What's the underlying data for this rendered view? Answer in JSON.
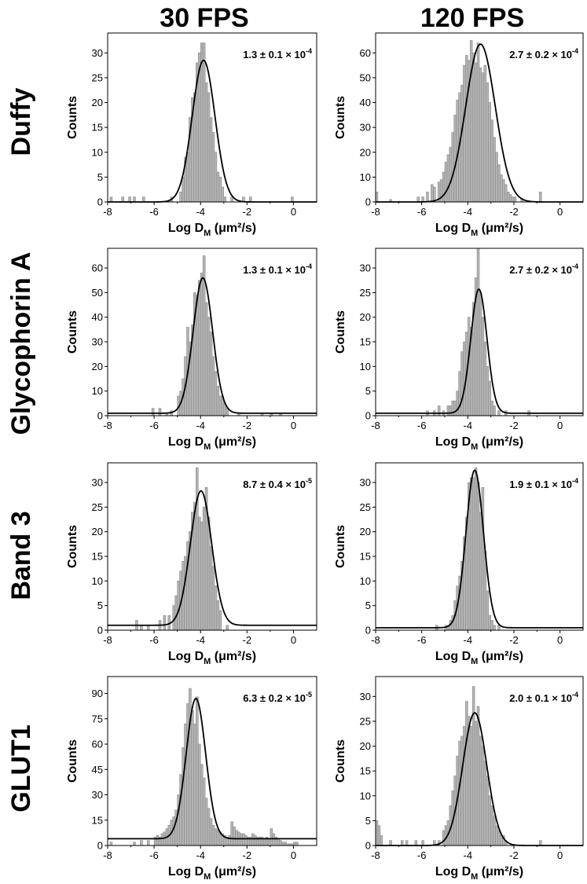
{
  "columns": [
    "30 FPS",
    "120 FPS"
  ],
  "rows": [
    "Duffy",
    "Glycophorin A",
    "Band 3",
    "GLUT1"
  ],
  "xlabel": "Log D",
  "xlabel_sub": "M",
  "xlabel_unit": " (μm²/s)",
  "ylabel": "Counts",
  "bar_color": "#b3b3b3",
  "bar_edge": "#8c8c8c",
  "fit_color": "#000000",
  "chart_data": [
    {
      "type": "bar",
      "row": "Duffy",
      "column": "30 FPS",
      "annotation_base": "1.3 ± 0.1 × 10",
      "annotation_exp": "-4",
      "xlim": [
        -8,
        1
      ],
      "ylim": [
        0,
        34
      ],
      "xticks": [
        -8,
        -6,
        -4,
        -2,
        0
      ],
      "yticks": [
        0,
        5,
        10,
        15,
        20,
        25,
        30
      ],
      "x": [
        -7.85,
        -7.35,
        -7.05,
        -6.85,
        -6.45,
        -5.25,
        -4.85,
        -4.75,
        -4.65,
        -4.55,
        -4.45,
        -4.35,
        -4.25,
        -4.15,
        -4.05,
        -3.95,
        -3.85,
        -3.75,
        -3.65,
        -3.55,
        -3.45,
        -3.35,
        -3.25,
        -3.15,
        -3.05,
        -2.95,
        -2.65,
        -2.15,
        -1.85,
        -0.05
      ],
      "values": [
        1,
        1,
        1,
        1,
        1,
        1,
        2,
        5,
        9,
        10,
        17,
        21,
        22,
        28,
        30,
        32,
        32,
        24,
        22,
        17,
        14,
        10,
        6,
        5,
        3,
        1,
        1,
        1,
        1,
        1
      ],
      "fit": {
        "baseline": 0,
        "amplitude": 28.5,
        "center": -3.87,
        "sigma": 0.49
      }
    },
    {
      "type": "bar",
      "row": "Duffy",
      "column": "120 FPS",
      "annotation_base": "2.7 ± 0.2 × 10",
      "annotation_exp": "-4",
      "xlim": [
        -8,
        1
      ],
      "ylim": [
        0,
        68
      ],
      "xticks": [
        -8,
        -6,
        -4,
        -2,
        0
      ],
      "yticks": [
        0,
        10,
        20,
        30,
        40,
        50,
        60
      ],
      "x": [
        -7.95,
        -7.35,
        -6.15,
        -5.95,
        -5.75,
        -5.55,
        -5.45,
        -5.25,
        -5.15,
        -5.05,
        -4.95,
        -4.85,
        -4.75,
        -4.65,
        -4.55,
        -4.45,
        -4.35,
        -4.25,
        -4.15,
        -4.05,
        -3.95,
        -3.85,
        -3.75,
        -3.65,
        -3.55,
        -3.45,
        -3.35,
        -3.25,
        -3.15,
        -3.05,
        -2.95,
        -2.85,
        -2.75,
        -2.65,
        -2.55,
        -2.45,
        -2.35,
        -2.25,
        -2.15,
        -2.05,
        -1.95,
        -1.65,
        -0.85
      ],
      "values": [
        4,
        1,
        2,
        2,
        4,
        7,
        6,
        8,
        9,
        12,
        16,
        19,
        22,
        28,
        35,
        41,
        44,
        47,
        55,
        59,
        57,
        65,
        60,
        56,
        64,
        54,
        52,
        55,
        48,
        40,
        33,
        26,
        20,
        15,
        11,
        9,
        7,
        4,
        3,
        2,
        2,
        1,
        4
      ],
      "fit": {
        "baseline": 0,
        "amplitude": 63.5,
        "center": -3.45,
        "sigma": 0.64
      }
    },
    {
      "type": "bar",
      "row": "Glycophorin A",
      "column": "30 FPS",
      "annotation_base": "1.3 ± 0.1 × 10",
      "annotation_exp": "-4",
      "xlim": [
        -8,
        1
      ],
      "ylim": [
        0,
        68
      ],
      "xticks": [
        -8,
        -6,
        -4,
        -2,
        0
      ],
      "yticks": [
        0,
        10,
        20,
        30,
        40,
        50,
        60
      ],
      "x": [
        -6.05,
        -5.75,
        -5.45,
        -5.25,
        -4.95,
        -4.85,
        -4.75,
        -4.65,
        -4.55,
        -4.45,
        -4.35,
        -4.25,
        -4.15,
        -4.05,
        -3.95,
        -3.85,
        -3.75,
        -3.65,
        -3.55,
        -3.45,
        -3.35,
        -3.25,
        -3.15,
        -3.05,
        -2.95,
        -2.85,
        -2.35,
        -1.35,
        -0.95,
        -0.55
      ],
      "values": [
        3,
        3,
        1,
        2,
        8,
        10,
        15,
        24,
        36,
        30,
        37,
        50,
        49,
        55,
        58,
        65,
        46,
        40,
        34,
        24,
        18,
        12,
        8,
        8,
        5,
        3,
        1,
        1,
        1,
        1
      ],
      "fit": {
        "baseline": 1,
        "amplitude": 55,
        "center": -3.9,
        "sigma": 0.42
      }
    },
    {
      "type": "bar",
      "row": "Glycophorin A",
      "column": "120 FPS",
      "annotation_base": "2.7 ± 0.2 × 10",
      "annotation_exp": "-4",
      "xlim": [
        -8,
        1
      ],
      "ylim": [
        0,
        34
      ],
      "xticks": [
        -8,
        -6,
        -4,
        -2,
        0
      ],
      "yticks": [
        0,
        5,
        10,
        15,
        20,
        25,
        30
      ],
      "x": [
        -5.75,
        -5.45,
        -5.25,
        -5.05,
        -4.85,
        -4.75,
        -4.65,
        -4.55,
        -4.45,
        -4.35,
        -4.25,
        -4.15,
        -4.05,
        -3.95,
        -3.85,
        -3.75,
        -3.65,
        -3.55,
        -3.45,
        -3.35,
        -3.25,
        -3.15,
        -3.05,
        -2.95,
        -2.85,
        -2.65,
        -2.35,
        -1.35
      ],
      "values": [
        1,
        1,
        2,
        1,
        2,
        2,
        3,
        3,
        5,
        9,
        13,
        15,
        17,
        20,
        18,
        23,
        28,
        34,
        25,
        20,
        15,
        10,
        7,
        3,
        2,
        1,
        1,
        1
      ],
      "fit": {
        "baseline": 0.5,
        "amplitude": 25.2,
        "center": -3.52,
        "sigma": 0.35
      }
    },
    {
      "type": "bar",
      "row": "Band 3",
      "column": "30 FPS",
      "annotation_base": "8.7 ± 0.4 × 10",
      "annotation_exp": "-5",
      "xlim": [
        -8,
        1
      ],
      "ylim": [
        0,
        34
      ],
      "xticks": [
        -8,
        -6,
        -4,
        -2,
        0
      ],
      "yticks": [
        0,
        5,
        10,
        15,
        20,
        25,
        30
      ],
      "x": [
        -6.75,
        -6.55,
        -6.25,
        -5.75,
        -5.55,
        -5.35,
        -5.15,
        -5.05,
        -4.95,
        -4.85,
        -4.75,
        -4.65,
        -4.55,
        -4.45,
        -4.35,
        -4.25,
        -4.15,
        -4.05,
        -3.95,
        -3.85,
        -3.75,
        -3.65,
        -3.55,
        -3.45,
        -3.35,
        -3.25,
        -3.15,
        -2.85
      ],
      "values": [
        2,
        1,
        1,
        2,
        3,
        3,
        5,
        7,
        10,
        12,
        14,
        15,
        18,
        20,
        24,
        26,
        33,
        23,
        22,
        25,
        29,
        23,
        17,
        13,
        9,
        6,
        4,
        1
      ],
      "fit": {
        "baseline": 1,
        "amplitude": 27.3,
        "center": -3.98,
        "sigma": 0.46
      }
    },
    {
      "type": "bar",
      "row": "Band 3",
      "column": "120 FPS",
      "annotation_base": "1.9 ± 0.1 × 10",
      "annotation_exp": "-4",
      "xlim": [
        -8,
        1
      ],
      "ylim": [
        0,
        34
      ],
      "xticks": [
        -8,
        -6,
        -4,
        -2,
        0
      ],
      "yticks": [
        0,
        5,
        10,
        15,
        20,
        25,
        30
      ],
      "x": [
        -5.35,
        -4.95,
        -4.85,
        -4.75,
        -4.65,
        -4.55,
        -4.45,
        -4.35,
        -4.25,
        -4.15,
        -4.05,
        -3.95,
        -3.85,
        -3.75,
        -3.65,
        -3.55,
        -3.45,
        -3.35,
        -3.25,
        -3.15,
        -3.05,
        -2.95,
        -2.85,
        -2.65
      ],
      "values": [
        1,
        1,
        1,
        2,
        3,
        6,
        9,
        11,
        14,
        19,
        23,
        30,
        31,
        31,
        33,
        30,
        24,
        29,
        16,
        8,
        3,
        2,
        1,
        1
      ],
      "fit": {
        "baseline": 0.5,
        "amplitude": 32,
        "center": -3.7,
        "sigma": 0.38
      }
    },
    {
      "type": "bar",
      "row": "GLUT1",
      "column": "30 FPS",
      "annotation_base": "6.3 ± 0.2 × 10",
      "annotation_exp": "-5",
      "xlim": [
        -8,
        1
      ],
      "ylim": [
        0,
        100
      ],
      "xticks": [
        -8,
        -6,
        -4,
        -2,
        0
      ],
      "yticks": [
        0,
        15,
        30,
        45,
        60,
        75,
        90
      ],
      "x": [
        -7.85,
        -6.85,
        -6.55,
        -6.25,
        -5.95,
        -5.85,
        -5.75,
        -5.65,
        -5.55,
        -5.45,
        -5.35,
        -5.25,
        -5.15,
        -5.05,
        -4.95,
        -4.85,
        -4.75,
        -4.65,
        -4.55,
        -4.45,
        -4.35,
        -4.25,
        -4.15,
        -4.05,
        -3.95,
        -3.85,
        -3.75,
        -3.65,
        -3.55,
        -3.45,
        -3.35,
        -3.25,
        -3.15,
        -3.05,
        -2.95,
        -2.85,
        -2.75,
        -2.65,
        -2.55,
        -2.45,
        -2.35,
        -2.25,
        -2.15,
        -2.05,
        -1.95,
        -1.85,
        -1.75,
        -1.65,
        -1.55,
        -1.45,
        -1.35,
        -1.25,
        -1.15,
        -1.05,
        -0.95,
        -0.85,
        -0.75,
        -0.65,
        -0.55,
        -0.45,
        -0.35,
        -0.25,
        -0.15,
        -0.05,
        0.05,
        0.15
      ],
      "values": [
        2,
        2,
        3,
        3,
        5,
        6,
        5,
        7,
        8,
        10,
        12,
        15,
        17,
        21,
        30,
        42,
        58,
        72,
        84,
        93,
        80,
        72,
        88,
        60,
        48,
        40,
        28,
        22,
        16,
        12,
        10,
        9,
        8,
        7,
        6,
        5,
        6,
        14,
        11,
        9,
        8,
        7,
        7,
        6,
        5,
        5,
        7,
        6,
        5,
        5,
        5,
        4,
        5,
        4,
        10,
        7,
        5,
        4,
        3,
        2,
        2,
        1,
        1,
        1,
        2,
        2
      ],
      "fit": {
        "baseline": 4,
        "amplitude": 83,
        "center": -4.2,
        "sigma": 0.42
      }
    },
    {
      "type": "bar",
      "row": "GLUT1",
      "column": "120 FPS",
      "annotation_base": "2.0 ± 0.1 × 10",
      "annotation_exp": "-4",
      "xlim": [
        -8,
        1
      ],
      "ylim": [
        0,
        34
      ],
      "xticks": [
        -8,
        -6,
        -4,
        -2,
        0
      ],
      "yticks": [
        0,
        5,
        10,
        15,
        20,
        25,
        30
      ],
      "x": [
        -7.95,
        -7.85,
        -7.75,
        -7.35,
        -6.85,
        -6.65,
        -6.25,
        -5.95,
        -5.45,
        -5.25,
        -5.05,
        -4.95,
        -4.85,
        -4.75,
        -4.65,
        -4.55,
        -4.45,
        -4.35,
        -4.25,
        -4.15,
        -4.05,
        -3.95,
        -3.85,
        -3.75,
        -3.65,
        -3.55,
        -3.45,
        -3.35,
        -3.25,
        -3.15,
        -3.05,
        -2.95,
        -2.85,
        -2.75,
        -2.65,
        -2.55,
        -2.45,
        -2.35,
        -0.85
      ],
      "values": [
        5,
        4,
        2,
        1,
        1,
        1,
        1,
        1,
        1,
        1,
        3,
        4,
        5,
        8,
        11,
        14,
        18,
        21,
        22,
        24,
        29,
        26,
        24,
        32,
        25,
        28,
        22,
        20,
        17,
        14,
        10,
        8,
        6,
        4,
        3,
        2,
        2,
        1,
        1
      ],
      "fit": {
        "baseline": 0,
        "amplitude": 26.7,
        "center": -3.7,
        "sigma": 0.52
      }
    }
  ]
}
